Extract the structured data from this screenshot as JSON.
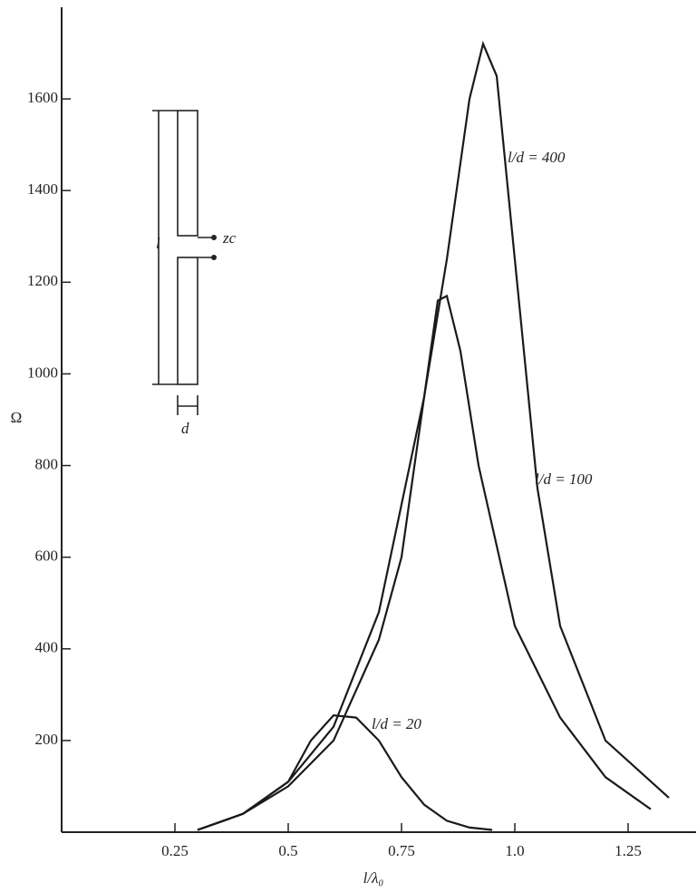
{
  "chart_data": {
    "type": "line",
    "x_label": "l/λ₀",
    "y_label": "Ω",
    "xlim": [
      0,
      1.4
    ],
    "ylim": [
      0,
      1800
    ],
    "xticks": [
      0.25,
      0.5,
      0.75,
      {
        "value": 1.0,
        "label": "1.0"
      },
      1.25
    ],
    "yticks": [
      200,
      400,
      600,
      800,
      1000,
      1200,
      1400,
      1600
    ],
    "series": [
      {
        "name": "l/d = 400",
        "color": "#1a1a1a",
        "x": [
          0.3,
          0.4,
          0.5,
          0.6,
          0.7,
          0.8,
          0.85,
          0.9,
          0.93,
          0.96,
          1.0,
          1.05,
          1.1,
          1.2,
          1.34
        ],
        "values": [
          5,
          40,
          110,
          230,
          480,
          950,
          1250,
          1600,
          1720,
          1650,
          1250,
          750,
          450,
          200,
          75
        ]
      },
      {
        "name": "l/d = 100",
        "color": "#1a1a1a",
        "x": [
          0.3,
          0.4,
          0.5,
          0.6,
          0.7,
          0.75,
          0.8,
          0.83,
          0.85,
          0.88,
          0.92,
          1.0,
          1.1,
          1.2,
          1.3
        ],
        "values": [
          5,
          40,
          100,
          200,
          420,
          600,
          950,
          1160,
          1170,
          1050,
          800,
          450,
          250,
          120,
          50
        ]
      },
      {
        "name": "l/d = 20",
        "color": "#1a1a1a",
        "x": [
          0.3,
          0.4,
          0.5,
          0.55,
          0.6,
          0.65,
          0.7,
          0.75,
          0.8,
          0.85,
          0.9,
          0.95
        ],
        "values": [
          5,
          40,
          110,
          200,
          255,
          250,
          200,
          120,
          60,
          25,
          10,
          5
        ]
      }
    ],
    "inset_labels": [
      "l",
      "d",
      "zc"
    ]
  }
}
